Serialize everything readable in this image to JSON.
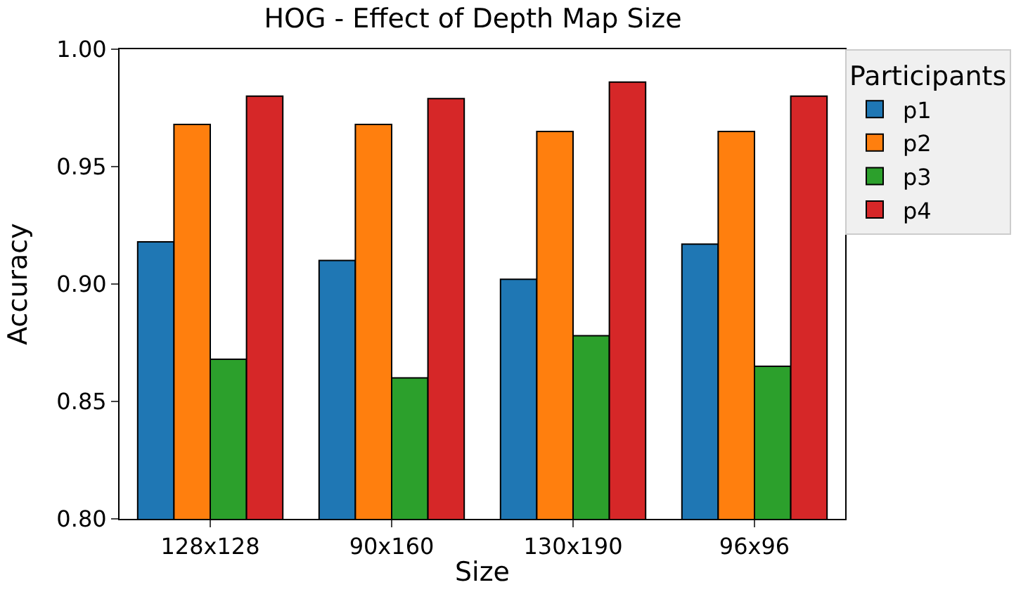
{
  "chart_data": {
    "type": "bar",
    "title": "HOG - Effect of Depth Map Size",
    "xlabel": "Size",
    "ylabel": "Accuracy",
    "legend_title": "Participants",
    "legend": "top right",
    "categories": [
      "128x128",
      "90x160",
      "130x190",
      "96x96"
    ],
    "series": [
      {
        "name": "p1",
        "color": "#1f77b4",
        "values": [
          0.918,
          0.91,
          0.902,
          0.917
        ]
      },
      {
        "name": "p2",
        "color": "#ff7f0e",
        "values": [
          0.968,
          0.968,
          0.965,
          0.965
        ]
      },
      {
        "name": "p3",
        "color": "#2ca02c",
        "values": [
          0.868,
          0.86,
          0.878,
          0.865
        ]
      },
      {
        "name": "p4",
        "color": "#d62728",
        "values": [
          0.98,
          0.979,
          0.986,
          0.98
        ]
      }
    ],
    "ylim": [
      0.8,
      1.0
    ],
    "yticks": [
      {
        "value": 0.8,
        "label": "0.80"
      },
      0.85,
      {
        "value": 0.9,
        "label": "0.90"
      },
      0.95,
      {
        "value": 1.0,
        "label": "1.00"
      }
    ]
  }
}
